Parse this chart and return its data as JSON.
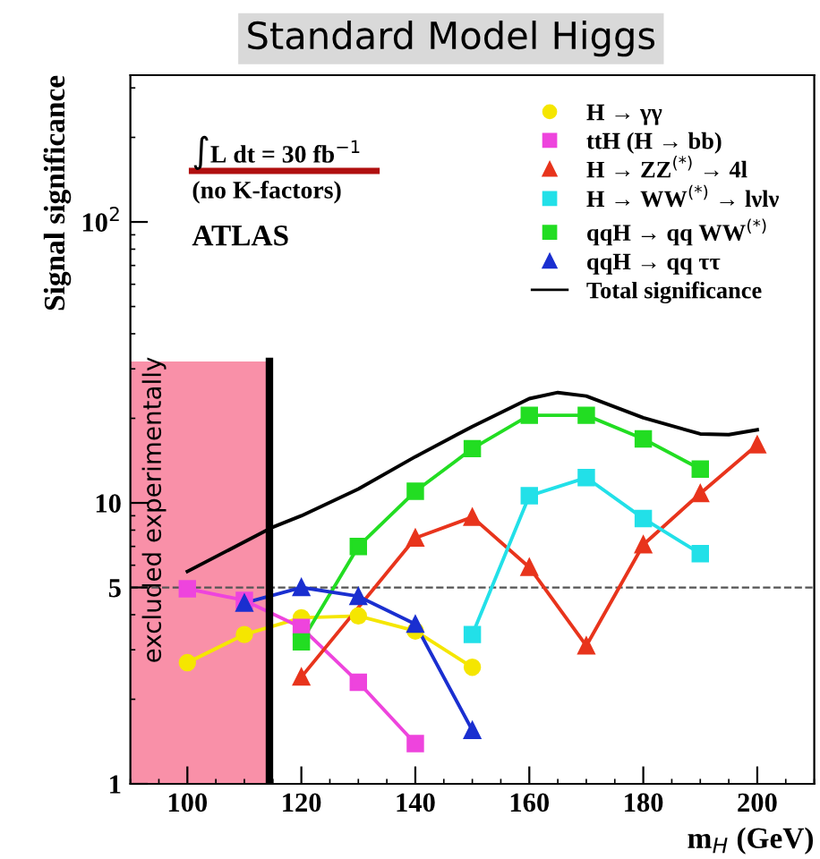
{
  "chart_data": {
    "type": "line",
    "title": "Standard Model Higgs",
    "xlabel": "m$_{H}$ (GeV)",
    "ylabel": "Signal significance",
    "xlim": [
      90,
      210
    ],
    "xticks": [
      100,
      120,
      140,
      160,
      180,
      200
    ],
    "ylim": [
      1,
      333
    ],
    "yticks": [
      1,
      5,
      10,
      {
        "value": 100,
        "label": "10$^{2}$"
      }
    ],
    "log": true,
    "grid": false,
    "legend": "top right",
    "series": [
      {
        "name": "H → γγ",
        "color": "#f5e600",
        "marker": "circle",
        "x": [
          100,
          110,
          120,
          130,
          140,
          150
        ],
        "values": [
          2.7,
          3.4,
          3.9,
          3.96,
          3.5,
          2.6
        ]
      },
      {
        "name": "ttH (H → bb)",
        "color": "#ee44dd",
        "marker": "square",
        "x": [
          100,
          110,
          120,
          130,
          140
        ],
        "values": [
          4.95,
          4.5,
          3.6,
          2.3,
          1.39
        ]
      },
      {
        "name": "H → ZZ$^{(*)}$ → 4l",
        "color": "#e8341c",
        "marker": "triangle",
        "x": [
          120,
          140,
          150,
          160,
          170,
          180,
          190,
          200
        ],
        "values": [
          2.4,
          7.5,
          8.9,
          5.9,
          3.1,
          7.1,
          10.8,
          16.1
        ]
      },
      {
        "name": "H → WW$^{(*)}$ → lνlν",
        "color": "#22e0e8",
        "marker": "square",
        "x": [
          150,
          160,
          170,
          180,
          190
        ],
        "values": [
          3.4,
          10.6,
          12.3,
          8.8,
          6.6
        ]
      },
      {
        "name": "qqH → qq WW$^{(*)}$",
        "color": "#22dd22",
        "marker": "square",
        "x": [
          120,
          130,
          140,
          150,
          160,
          170,
          180,
          190
        ],
        "values": [
          3.2,
          7.0,
          11.0,
          15.6,
          20.5,
          20.5,
          16.9,
          13.2
        ]
      },
      {
        "name": "qqH → qq ττ",
        "color": "#1a2fd0",
        "marker": "triangle",
        "x": [
          110,
          120,
          130,
          140,
          150
        ],
        "values": [
          4.4,
          5.0,
          4.65,
          3.7,
          1.55
        ]
      },
      {
        "name": "Total significance",
        "color": "#000000",
        "marker": "none",
        "x": [
          100,
          115,
          120,
          130,
          140,
          150,
          160,
          165,
          170,
          180,
          190,
          195,
          200
        ],
        "values": [
          5.7,
          8.2,
          9.0,
          11.2,
          14.6,
          18.7,
          23.5,
          24.7,
          24.0,
          20.1,
          17.6,
          17.5,
          18.2
        ]
      }
    ],
    "ref_lines": [
      {
        "axis": "y",
        "value": 5,
        "color": "#555555",
        "line_style": "dashed"
      },
      {
        "axis": "x",
        "value": 114.4,
        "color": "#000000",
        "line_style": "solid"
      }
    ],
    "bands": [
      {
        "axis": "x",
        "from": 90,
        "to": 114.4,
        "label": "excluded experimentally",
        "color": "#f990a8"
      }
    ],
    "annotations": [
      "∫L dt = 30 fb$^{−1}$",
      "(no K-factors)",
      "ATLAS"
    ]
  }
}
